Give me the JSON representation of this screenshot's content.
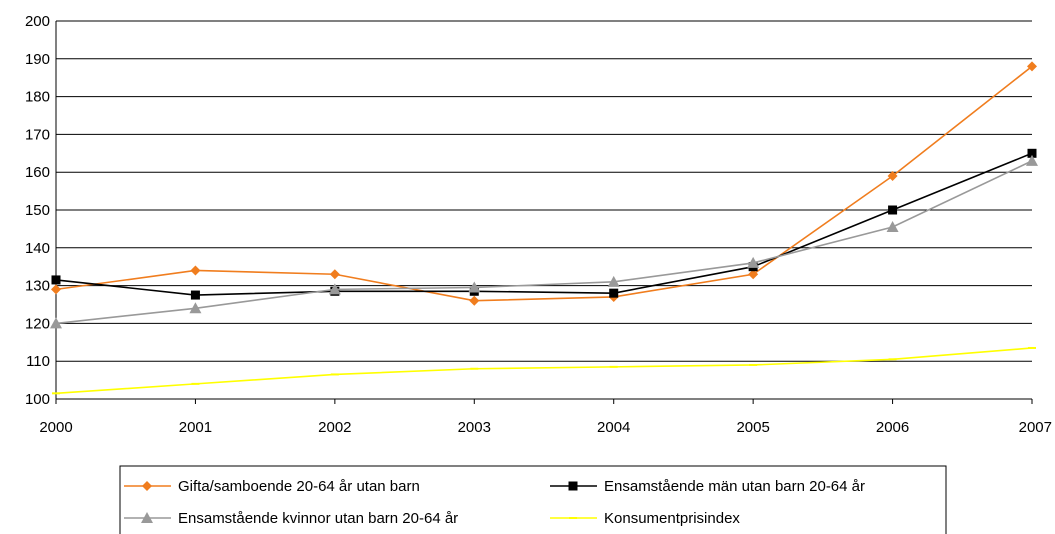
{
  "chart_data": {
    "type": "line",
    "title": "",
    "xlabel": "",
    "ylabel": "",
    "categories": [
      "2000",
      "2001",
      "2002",
      "2003",
      "2004",
      "2005",
      "2006",
      "2007"
    ],
    "ylim": [
      100,
      200
    ],
    "yticks": [
      100,
      110,
      120,
      130,
      140,
      150,
      160,
      170,
      180,
      190,
      200
    ],
    "grid": "horizontal",
    "legend_position": "bottom",
    "series": [
      {
        "name": "Gifta/samboende 20-64 år utan barn",
        "color": "#f07d1e",
        "marker": "diamond",
        "values": [
          129,
          134,
          133,
          126,
          127,
          133,
          159,
          188
        ]
      },
      {
        "name": "Ensamstående män utan barn 20-64 år",
        "color": "#000000",
        "marker": "square",
        "values": [
          131.5,
          127.5,
          128.5,
          128.5,
          128,
          135,
          150,
          165
        ]
      },
      {
        "name": "Ensamstående kvinnor utan barn 20-64 år",
        "color": "#999999",
        "marker": "triangle",
        "values": [
          120,
          124,
          129,
          129.5,
          131,
          136,
          145.5,
          163
        ]
      },
      {
        "name": "Konsumentprisindex",
        "color": "#ffff00",
        "marker": "dash",
        "values": [
          101.5,
          104,
          106.5,
          108,
          108.5,
          109,
          110.5,
          113.5
        ]
      }
    ]
  }
}
